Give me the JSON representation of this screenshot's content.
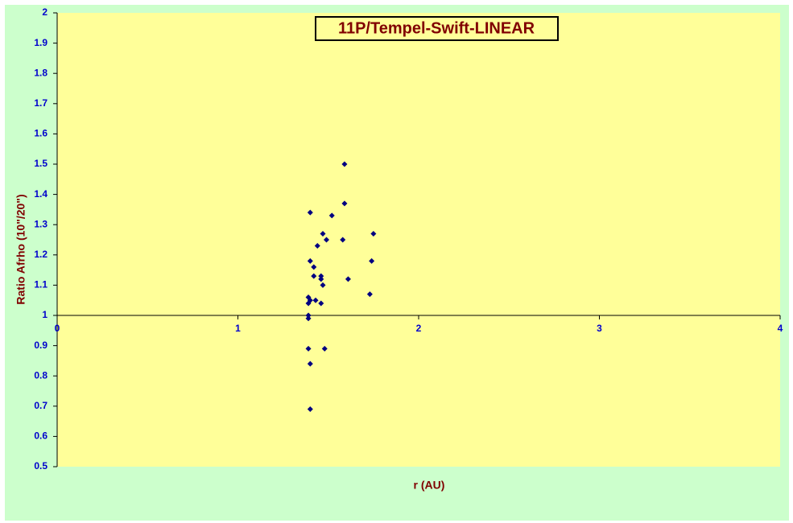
{
  "chart_data": {
    "type": "scatter",
    "title": "11P/Tempel-Swift-LINEAR",
    "x_label": "r (AU)",
    "y_label": "Ratio Afrho (10\"/20\")",
    "color": "#000080",
    "x": [
      1.4,
      1.59,
      1.59,
      1.52,
      1.75,
      1.47,
      1.49,
      1.58,
      1.44,
      1.74,
      1.4,
      1.42,
      1.42,
      1.46,
      1.61,
      1.46,
      1.47,
      1.73,
      1.39,
      1.4,
      1.43,
      1.46,
      1.39,
      1.39,
      1.39,
      1.39,
      1.48,
      1.4,
      1.4
    ],
    "y": [
      1.34,
      1.37,
      1.5,
      1.33,
      1.27,
      1.27,
      1.25,
      1.25,
      1.23,
      1.18,
      1.18,
      1.16,
      1.13,
      1.13,
      1.12,
      1.12,
      1.1,
      1.07,
      1.06,
      1.05,
      1.05,
      1.04,
      1.04,
      1.0,
      0.99,
      0.89,
      0.89,
      0.84,
      0.69
    ],
    "xlim": [
      0,
      4
    ],
    "xticks": [
      0,
      1,
      2,
      3,
      4
    ],
    "ylim": [
      0.5,
      2
    ],
    "yticks": [
      0.5,
      0.6,
      0.7,
      0.8,
      0.9,
      1,
      1.1,
      1.2,
      1.3,
      1.4,
      1.5,
      1.6,
      1.7,
      1.8,
      1.9,
      2
    ],
    "x_axis_at_y": 1
  }
}
